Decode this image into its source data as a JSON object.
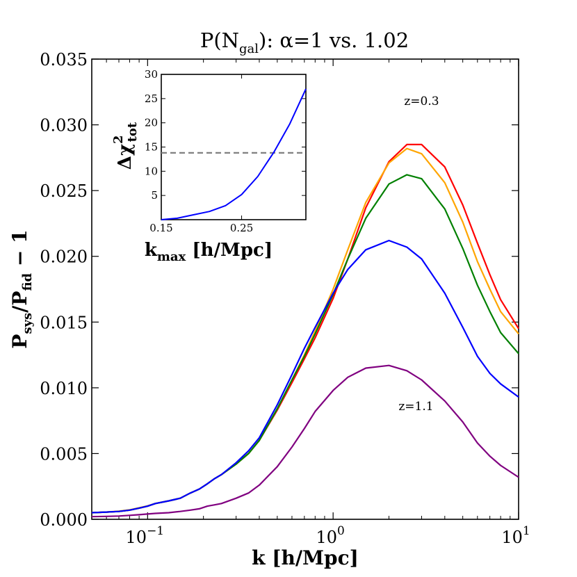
{
  "chart_data": {
    "type": "line",
    "title": {
      "main": "P(N",
      "sub": "gal",
      "rest": "): α=1 vs. 1.02"
    },
    "xlabel": "k [h/Mpc]",
    "ylabel": {
      "p1": "P",
      "s1": "sys",
      "mid": "/P",
      "s2": "fid",
      "rest": " − 1"
    },
    "xscale": "log",
    "xlim": [
      0.05,
      10
    ],
    "ylim": [
      0.0,
      0.035
    ],
    "yticks": [
      0.0,
      0.005,
      0.01,
      0.015,
      0.02,
      0.025,
      0.03,
      0.035
    ],
    "ytick_labels": [
      "0.000",
      "0.005",
      "0.010",
      "0.015",
      "0.020",
      "0.025",
      "0.030",
      "0.035"
    ],
    "xticks": [
      {
        "value": 0.1,
        "base": "10",
        "exp": "−1"
      },
      {
        "value": 1,
        "base": "10",
        "exp": "0"
      },
      {
        "value": 10,
        "base": "10",
        "exp": "1"
      }
    ],
    "annotations": [
      {
        "text": "z=0.3",
        "x": 3.0,
        "y": 0.0315
      },
      {
        "text": "z=1.1",
        "x": 2.8,
        "y": 0.0083
      }
    ],
    "x": [
      0.05,
      0.06,
      0.07,
      0.08,
      0.09,
      0.1,
      0.11,
      0.13,
      0.15,
      0.17,
      0.19,
      0.21,
      0.23,
      0.25,
      0.3,
      0.35,
      0.4,
      0.5,
      0.6,
      0.7,
      0.8,
      1.0,
      1.2,
      1.5,
      2.0,
      2.5,
      3.0,
      4.0,
      5.0,
      6.0,
      7.0,
      8.0,
      10.0
    ],
    "series": [
      {
        "name": "z=0.3",
        "color": "#ff0000",
        "values": [
          0.0005,
          0.00055,
          0.0006,
          0.0007,
          0.00085,
          0.001,
          0.0012,
          0.0014,
          0.0016,
          0.002,
          0.0023,
          0.0027,
          0.0031,
          0.0034,
          0.0042,
          0.005,
          0.006,
          0.0083,
          0.0104,
          0.0122,
          0.0138,
          0.0168,
          0.0198,
          0.0237,
          0.0272,
          0.0285,
          0.0285,
          0.0268,
          0.0239,
          0.021,
          0.0186,
          0.0167,
          0.0145
        ]
      },
      {
        "name": "orange",
        "color": "#ffa500",
        "values": [
          0.0005,
          0.00055,
          0.00062,
          0.00072,
          0.00087,
          0.00102,
          0.0012,
          0.0014,
          0.0016,
          0.002,
          0.0023,
          0.0027,
          0.0031,
          0.0034,
          0.0042,
          0.005,
          0.006,
          0.0084,
          0.0106,
          0.0125,
          0.0143,
          0.0175,
          0.0205,
          0.0241,
          0.0271,
          0.0282,
          0.0278,
          0.0256,
          0.0226,
          0.0196,
          0.0175,
          0.0158,
          0.0141
        ]
      },
      {
        "name": "green",
        "color": "#008000",
        "values": [
          0.0005,
          0.00055,
          0.0006,
          0.0007,
          0.00085,
          0.001,
          0.0012,
          0.0014,
          0.0016,
          0.002,
          0.0023,
          0.0027,
          0.0031,
          0.0034,
          0.0042,
          0.005,
          0.006,
          0.0084,
          0.0106,
          0.0124,
          0.0141,
          0.0171,
          0.0198,
          0.0229,
          0.0255,
          0.0262,
          0.0259,
          0.0236,
          0.0206,
          0.0178,
          0.0158,
          0.0142,
          0.0126
        ]
      },
      {
        "name": "blue",
        "color": "#0000ff",
        "values": [
          0.0005,
          0.00055,
          0.0006,
          0.0007,
          0.00085,
          0.001,
          0.0012,
          0.0014,
          0.0016,
          0.002,
          0.0023,
          0.0027,
          0.0031,
          0.0034,
          0.0043,
          0.0052,
          0.0062,
          0.0087,
          0.011,
          0.013,
          0.0146,
          0.0172,
          0.019,
          0.0205,
          0.0212,
          0.0207,
          0.0198,
          0.0172,
          0.0146,
          0.0124,
          0.0111,
          0.0103,
          0.0093
        ]
      },
      {
        "name": "z=1.1",
        "color": "#800080",
        "values": [
          0.0002,
          0.00022,
          0.00025,
          0.0003,
          0.00035,
          0.0004,
          0.00045,
          0.0005,
          0.0006,
          0.0007,
          0.0008,
          0.001,
          0.0011,
          0.0012,
          0.0016,
          0.002,
          0.0026,
          0.004,
          0.0055,
          0.0069,
          0.0082,
          0.0098,
          0.0108,
          0.0115,
          0.0117,
          0.0113,
          0.0106,
          0.009,
          0.0074,
          0.0058,
          0.0048,
          0.0041,
          0.0032
        ]
      }
    ],
    "inset": {
      "type": "line",
      "xlabel": {
        "main": "k",
        "sub": "max",
        "rest": " [h/Mpc]"
      },
      "ylabel": {
        "main": "Δχ",
        "sup": "2",
        "sub": "tot"
      },
      "xlim": [
        0.15,
        0.33
      ],
      "ylim": [
        0,
        30
      ],
      "yticks": [
        5,
        10,
        15,
        20,
        25,
        30
      ],
      "ytick_labels": [
        "5",
        "10",
        "15",
        "20",
        "25",
        "30"
      ],
      "xticks": [
        0.15,
        0.25
      ],
      "xtick_labels": [
        "0.15",
        "0.25"
      ],
      "x": [
        0.15,
        0.17,
        0.19,
        0.21,
        0.23,
        0.25,
        0.27,
        0.29,
        0.31,
        0.33
      ],
      "values": [
        0.0,
        0.3,
        1.0,
        1.7,
        2.9,
        5.2,
        8.9,
        13.9,
        19.8,
        27.0
      ],
      "color": "#0000ff",
      "threshold": {
        "value": 13.8,
        "color": "#808080",
        "style": "dashed"
      }
    }
  }
}
